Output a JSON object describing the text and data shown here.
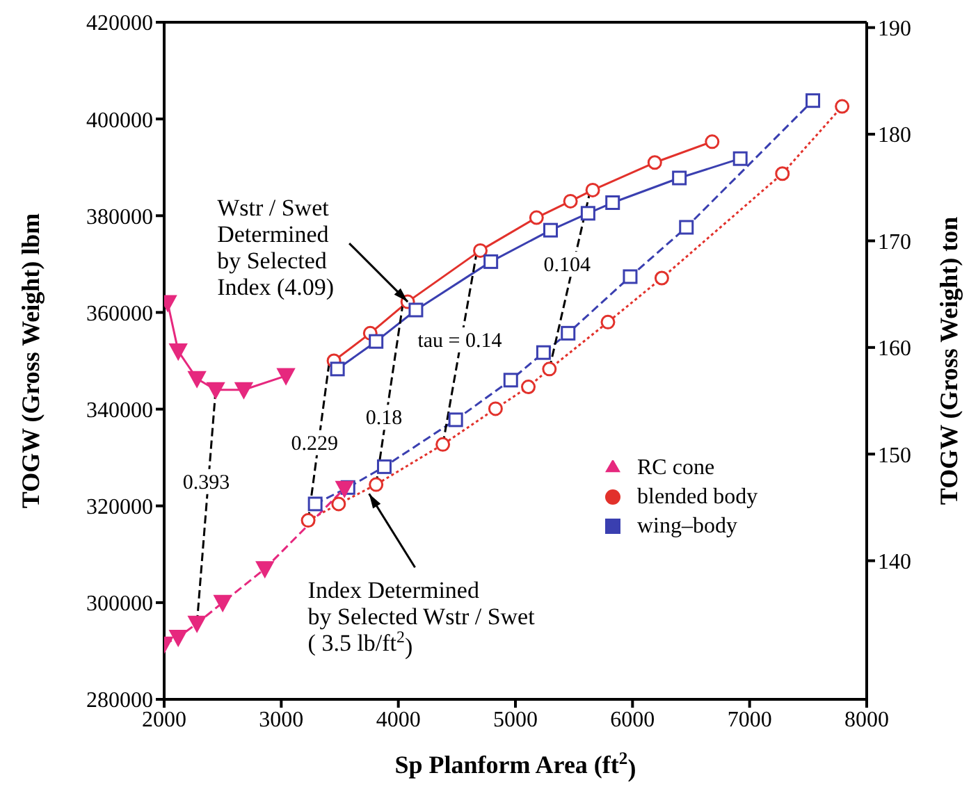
{
  "chart_data": {
    "type": "line",
    "xlabel": "Sp Planform Area (ft$^{2}$)",
    "ylabel": "TOGW (Gross Weight) lbm",
    "y2label": "TOGW (Gross Weight) ton",
    "xlim": [
      2000,
      8000
    ],
    "xticks": [
      2000,
      3000,
      4000,
      5000,
      6000,
      7000,
      8000
    ],
    "ylim": [
      280000,
      420000
    ],
    "yticks": [
      280000,
      300000,
      320000,
      340000,
      360000,
      380000,
      400000,
      420000
    ],
    "y2lim": [
      127,
      190.5
    ],
    "y2ticks": [
      140,
      150,
      160,
      170,
      180,
      190
    ],
    "legend": "right",
    "series": [
      {
        "name": "blended body",
        "color": "#e2312b",
        "marker": "circle",
        "line_style": "solid",
        "x": [
          3450,
          3760,
          4080,
          4700,
          5180,
          5470,
          5660,
          6190,
          6680
        ],
        "values": [
          350000,
          355700,
          362200,
          372800,
          379600,
          383000,
          385300,
          391000,
          395300
        ]
      },
      {
        "name": "wing–body",
        "color": "#3a3fb0",
        "marker": "square",
        "line_style": "solid",
        "x": [
          3480,
          3810,
          4150,
          4790,
          5300,
          5620,
          5830,
          6400,
          6920
        ],
        "values": [
          348300,
          354000,
          360500,
          370500,
          377000,
          380500,
          382700,
          387800,
          391800
        ]
      },
      {
        "name": "RC cone",
        "color": "#e6287e",
        "marker": "triangle",
        "line_style": "solid",
        "x": [
          2030,
          2120,
          2280,
          2440,
          2680,
          3040
        ],
        "values": [
          362000,
          352000,
          346300,
          344000,
          344000,
          346900
        ]
      },
      {
        "color": "#e2312b",
        "marker": "circle",
        "line_style": "dotted",
        "x": [
          3230,
          3490,
          3810,
          4380,
          4830,
          5110,
          5290,
          5790,
          6250,
          7280,
          7790
        ],
        "values": [
          317000,
          320400,
          324400,
          332700,
          340100,
          344600,
          348300,
          358000,
          367100,
          388700,
          402600
        ]
      },
      {
        "color": "#3a3fb0",
        "marker": "square",
        "line_style": "dashed",
        "x": [
          3290,
          3570,
          3880,
          4490,
          4960,
          5240,
          5450,
          5980,
          6460,
          7540
        ],
        "values": [
          320400,
          323800,
          328100,
          337800,
          346000,
          351700,
          355700,
          367400,
          377600,
          403800
        ]
      },
      {
        "color": "#e6287e",
        "marker": "triangle",
        "line_style": "dashed",
        "x": [
          2000,
          2120,
          2280,
          2500,
          2860,
          3540
        ],
        "values": [
          291400,
          292800,
          295700,
          300000,
          307000,
          323600
        ]
      },
      {
        "color": "#000000",
        "marker": "none",
        "line_style": "dashed",
        "x": [
          2280,
          2440
        ],
        "values": [
          295700,
          344000
        ]
      },
      {
        "color": "#000000",
        "marker": "none",
        "line_style": "dashed",
        "x": [
          3230,
          3410
        ],
        "values": [
          317000,
          349700
        ]
      },
      {
        "color": "#000000",
        "marker": "none",
        "line_style": "dashed",
        "x": [
          3810,
          4040
        ],
        "values": [
          324400,
          362000
        ]
      },
      {
        "color": "#000000",
        "marker": "none",
        "line_style": "dashed",
        "x": [
          4380,
          4670
        ],
        "values": [
          332700,
          372500
        ]
      },
      {
        "color": "#000000",
        "marker": "none",
        "line_style": "dashed",
        "x": [
          5290,
          5640
        ],
        "values": [
          348300,
          385300
        ]
      }
    ],
    "annotations": [
      {
        "text": "Wstr / Swet\nDetermined\nby Selected\nIndex (4.09)",
        "x": 4080,
        "y": 362200
      },
      {
        "text": "Index Determined\nby Selected Wstr / Swet\n( 3.5 lb/ft$^{2}$)",
        "x": 3750,
        "y": 322500
      },
      {
        "text": "0.393",
        "x": 2360,
        "y": 319850
      },
      {
        "text": "0.229",
        "x": 3320,
        "y": 333350
      },
      {
        "text": "0.18",
        "x": 3925,
        "y": 343200
      },
      {
        "text": "tau = 0.14",
        "x": 4525,
        "y": 352600
      },
      {
        "text": "0.104",
        "x": 5465,
        "y": 366800
      }
    ]
  }
}
